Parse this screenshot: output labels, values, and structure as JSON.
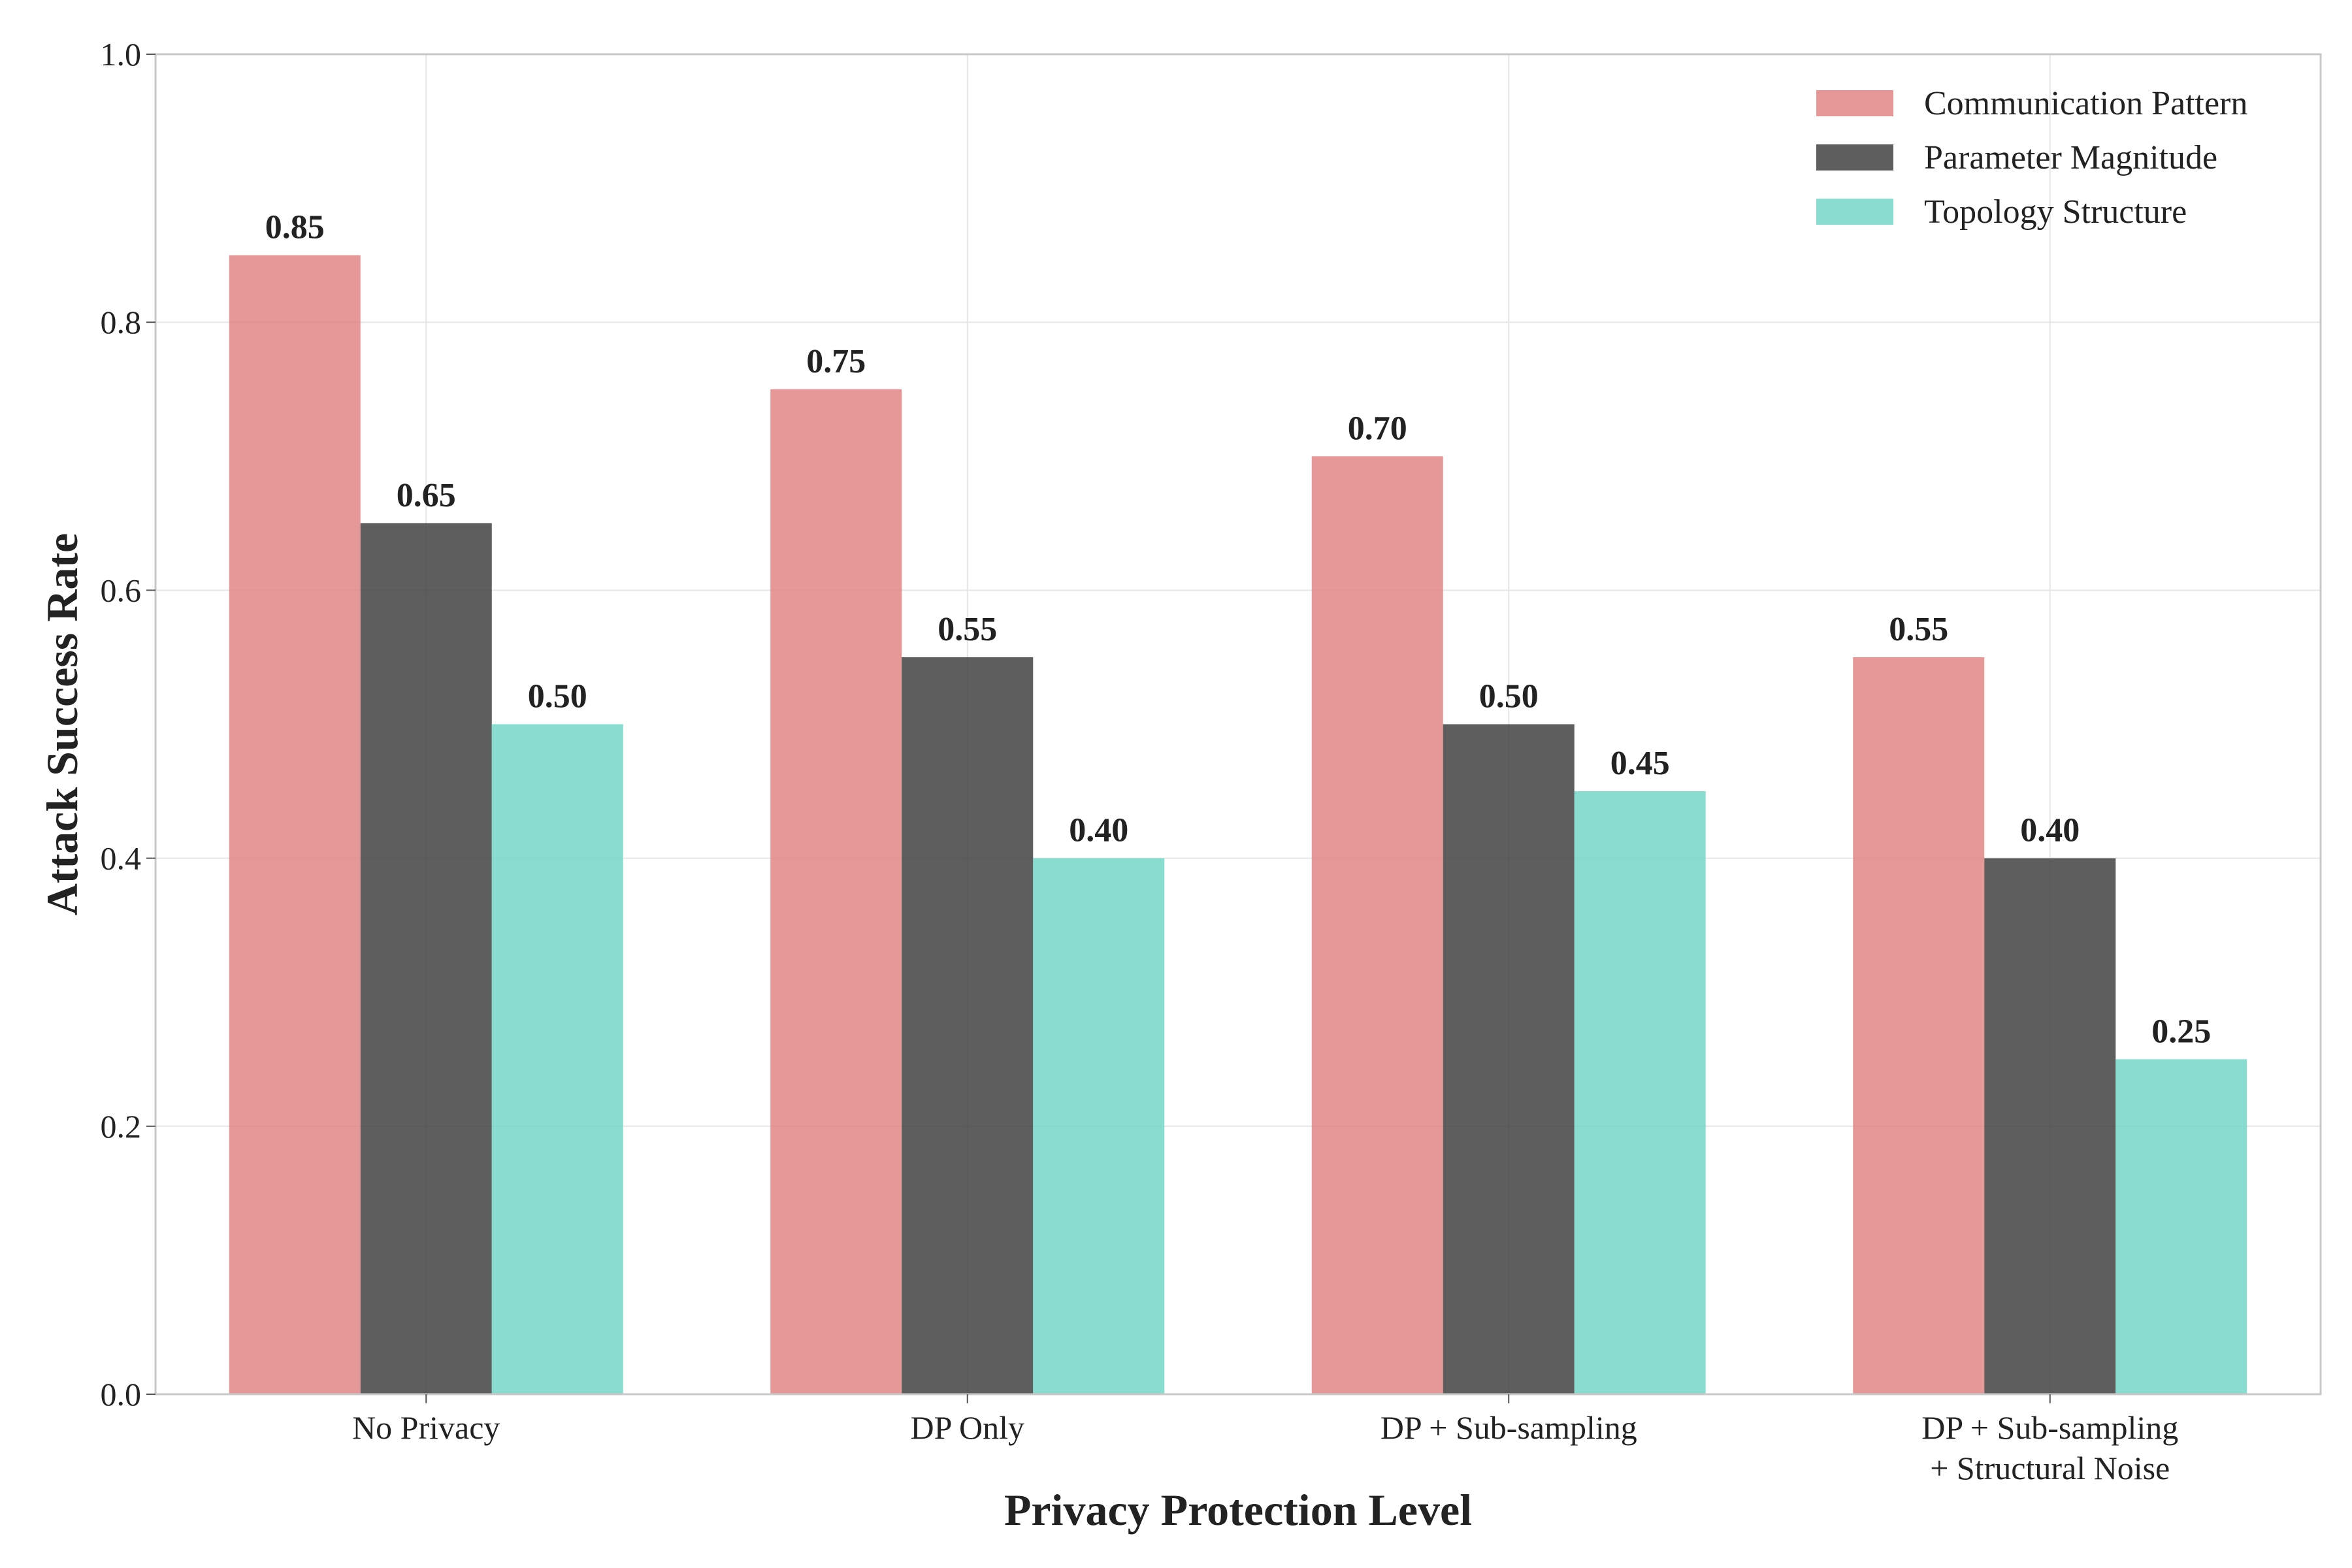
{
  "chart_data": {
    "type": "bar",
    "xlabel": "Privacy Protection Level",
    "ylabel": "Attack Success Rate",
    "ylim": [
      0,
      1.0
    ],
    "yticks": [
      "0.0",
      "0.2",
      "0.4",
      "0.6",
      "0.8",
      "1.0"
    ],
    "grid": true,
    "legend_position": "top-right",
    "categories": [
      [
        "No Privacy"
      ],
      [
        "DP Only"
      ],
      [
        "DP + Sub-sampling"
      ],
      [
        "DP + Sub-sampling",
        "+ Structural Noise"
      ]
    ],
    "series": [
      {
        "name": "Communication Pattern",
        "color": "#e08080",
        "values": [
          0.85,
          0.75,
          0.7,
          0.55
        ],
        "labels": [
          "0.85",
          "0.75",
          "0.70",
          "0.55"
        ]
      },
      {
        "name": "Parameter Magnitude",
        "color": "#3a3a3a",
        "values": [
          0.65,
          0.55,
          0.5,
          0.4
        ],
        "labels": [
          "0.65",
          "0.55",
          "0.50",
          "0.40"
        ]
      },
      {
        "name": "Topology Structure",
        "color": "#6fd6c6",
        "values": [
          0.5,
          0.4,
          0.45,
          0.25
        ],
        "labels": [
          "0.50",
          "0.40",
          "0.45",
          "0.25"
        ]
      }
    ]
  }
}
